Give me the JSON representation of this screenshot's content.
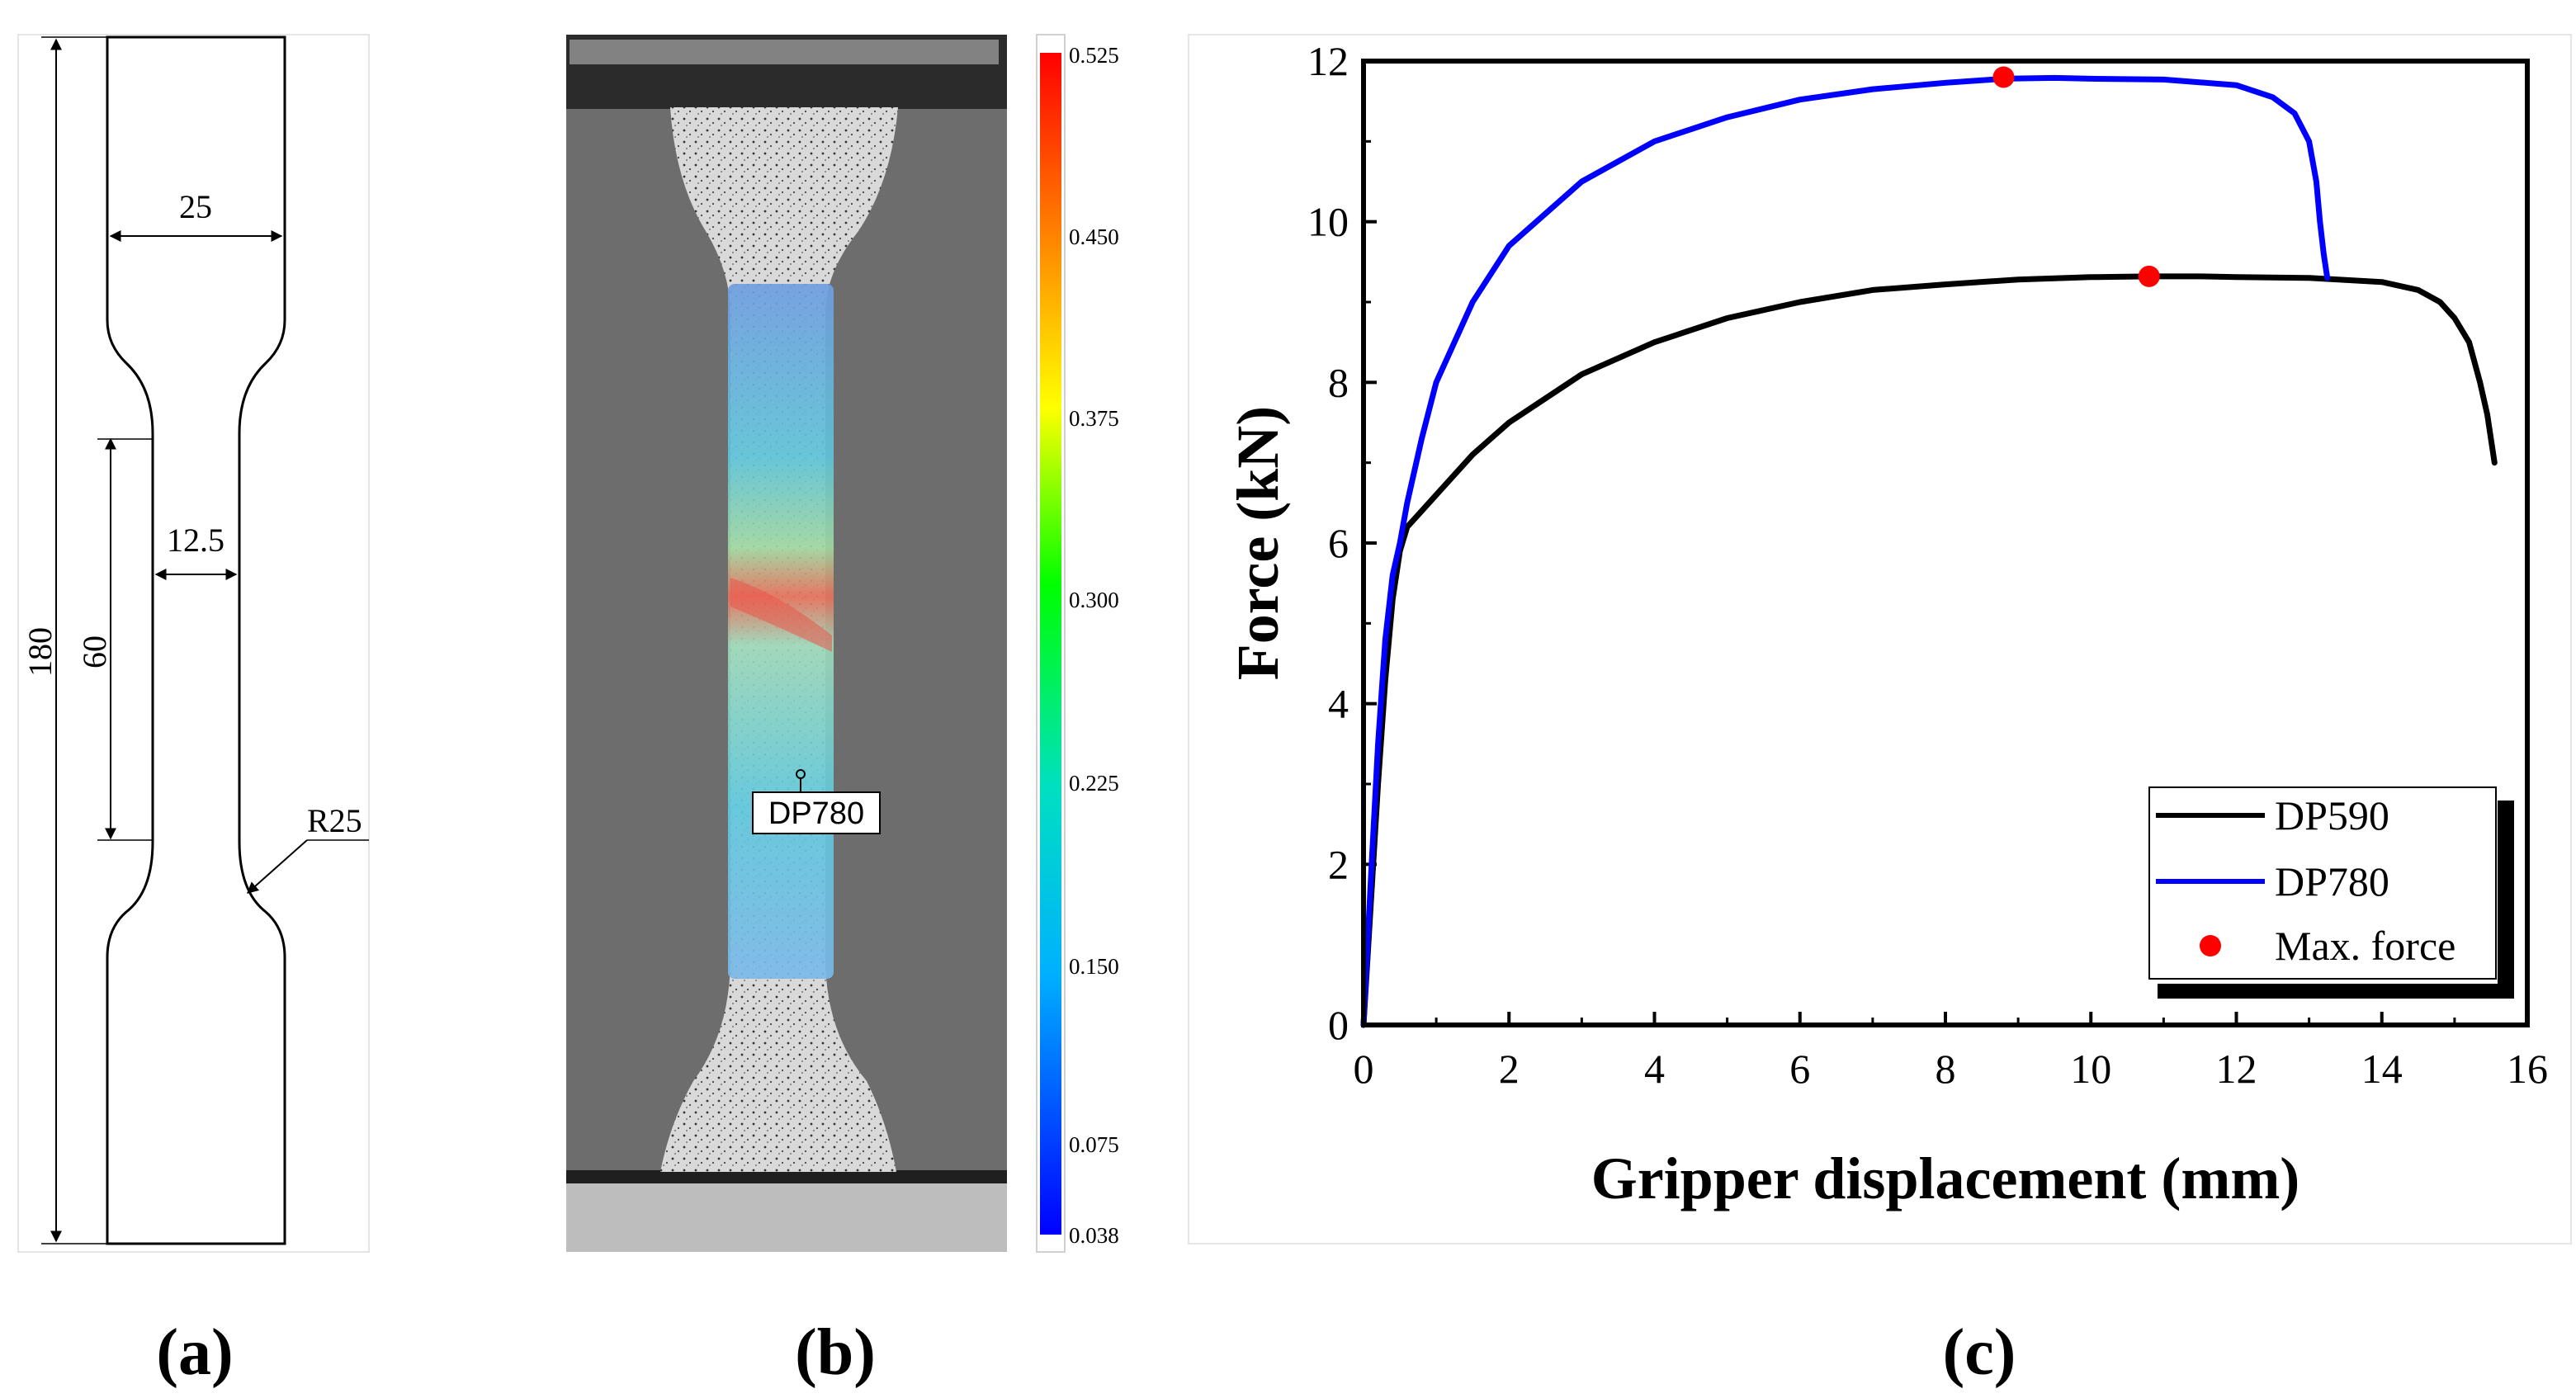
{
  "panels": {
    "a": {
      "label": "(a)",
      "dimensions": {
        "total_length": "180",
        "gauge_length": "60",
        "grip_width": "25",
        "gauge_width": "12.5",
        "radius": "R25"
      }
    },
    "b": {
      "label": "(b)",
      "specimen_label": "DP780",
      "colorbar": {
        "ticks": [
          "0.525",
          "0.450",
          "0.375",
          "0.300",
          "0.225",
          "0.150",
          "0.075",
          "0.038"
        ]
      }
    },
    "c": {
      "label": "(c)"
    }
  },
  "chart_data": {
    "type": "line",
    "title": "",
    "xlabel": "Gripper displacement (mm)",
    "ylabel": "Force (kN)",
    "xlim": [
      0,
      16
    ],
    "ylim": [
      0,
      12
    ],
    "xticks": [
      0,
      2,
      4,
      6,
      8,
      10,
      12,
      14,
      16
    ],
    "yticks": [
      0,
      2,
      4,
      6,
      8,
      10,
      12
    ],
    "grid": false,
    "legend_position": "bottom-right",
    "series": [
      {
        "name": "DP590",
        "color": "#000000",
        "x": [
          0,
          0.1,
          0.2,
          0.3,
          0.4,
          0.5,
          0.6,
          0.8,
          1,
          1.5,
          2,
          3,
          4,
          5,
          6,
          7,
          8,
          9,
          10,
          10.8,
          11.5,
          12,
          13,
          14,
          14.5,
          14.8,
          15,
          15.2,
          15.35,
          15.45,
          15.5,
          15.55
        ],
        "y": [
          0,
          1.5,
          3.0,
          4.3,
          5.3,
          5.9,
          6.2,
          6.4,
          6.6,
          7.1,
          7.5,
          8.1,
          8.5,
          8.8,
          9.0,
          9.15,
          9.22,
          9.28,
          9.31,
          9.32,
          9.32,
          9.31,
          9.3,
          9.25,
          9.15,
          9.0,
          8.8,
          8.5,
          8.0,
          7.6,
          7.3,
          7.0
        ]
      },
      {
        "name": "DP780",
        "color": "#0000ff",
        "x": [
          0,
          0.1,
          0.2,
          0.3,
          0.4,
          0.5,
          0.6,
          0.8,
          1,
          1.5,
          2,
          3,
          4,
          5,
          6,
          7,
          8,
          8.8,
          9.5,
          10,
          11,
          12,
          12.5,
          12.8,
          13,
          13.1,
          13.15,
          13.2,
          13.25
        ],
        "y": [
          0,
          1.8,
          3.5,
          4.8,
          5.6,
          6.0,
          6.5,
          7.3,
          8.0,
          9.0,
          9.7,
          10.5,
          11.0,
          11.3,
          11.52,
          11.65,
          11.73,
          11.78,
          11.79,
          11.78,
          11.77,
          11.7,
          11.55,
          11.35,
          11.0,
          10.5,
          10.0,
          9.6,
          9.3
        ]
      }
    ],
    "max_force": {
      "name": "Max. force",
      "color": "#ff0000",
      "points": [
        {
          "series": "DP780",
          "x": 8.8,
          "y": 11.8
        },
        {
          "series": "DP590",
          "x": 10.8,
          "y": 9.32
        }
      ]
    },
    "legend": [
      "DP590",
      "DP780",
      "Max. force"
    ]
  }
}
